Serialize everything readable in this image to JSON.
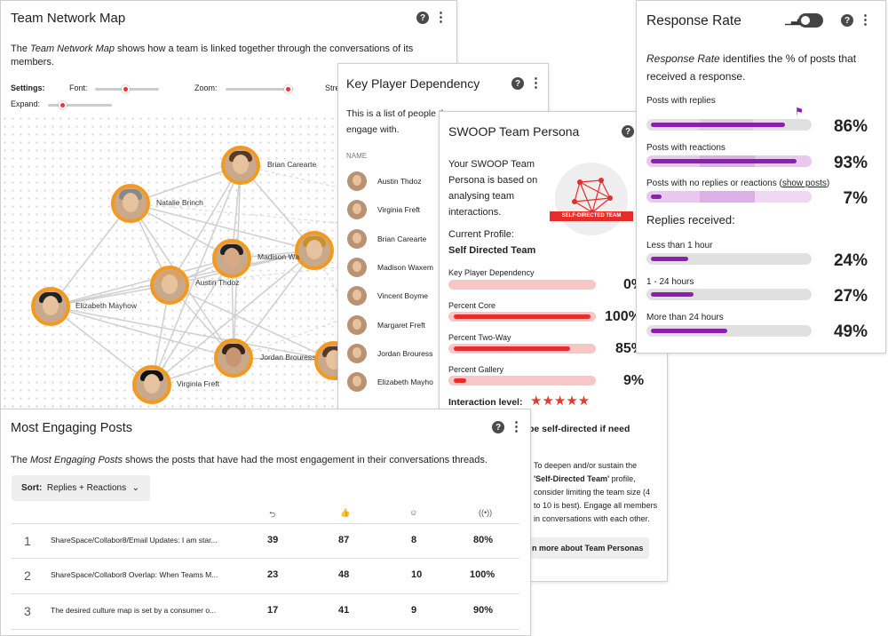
{
  "network": {
    "title": "Team Network Map",
    "desc_pre": "The ",
    "desc_em": "Team Network Map",
    "desc_post": " shows how a team is linked together through the conversations of its members.",
    "settings_label": "Settings:",
    "font_label": "Font:",
    "zoom_label": "Zoom:",
    "strength_label": "Stre",
    "expand_label": "Expand:",
    "nodes": [
      "Brian Carearte",
      "Natalie Brinch",
      "Madison Wa",
      "Austin Thdoz",
      "Elizabeth Mayhow",
      "Jordan Brouress",
      "Virginia Freft"
    ]
  },
  "keyplayer": {
    "title": "Key Player Dependency",
    "desc": "This is a list of people the",
    "desc2": "engage with.",
    "col_name": "NAME",
    "people": [
      "Austin Thdoz",
      "Virginia Freft",
      "Brian Carearte",
      "Madison Waxem",
      "Vincent Boyme",
      "Margaret Freft",
      "Jordan Brouress",
      "Elizabeth Mayho"
    ]
  },
  "persona": {
    "title": "SWOOP Team Persona",
    "desc": "Your SWOOP Team Persona is based on analysing team interactions.",
    "current_label": "Current Profile:",
    "current_value": "Self Directed Team",
    "badge": "SELF-DIRECTED TEAM",
    "metrics": [
      {
        "label": "Key Player Dependency",
        "value": "0%",
        "pct": 0
      },
      {
        "label": "Percent Core",
        "value": "100%",
        "pct": 100
      },
      {
        "label": "Percent Two-Way",
        "value": "85%",
        "pct": 85
      },
      {
        "label": "Percent Gallery",
        "value": "9%",
        "pct": 9
      }
    ],
    "interaction_label": "Interaction level:",
    "stars": "★★★★★",
    "be_text": "be self-directed if need",
    "advice_1": "To deepen and/or sustain the",
    "advice_2": "'Self-Directed Team'",
    "advice_3": " profile, consider limiting the team size (4 to 10 is best). Engage all members in conversations with each other.",
    "learn_more": "n more about Team Personas"
  },
  "response": {
    "title": "Response Rate",
    "desc_em": "Response Rate",
    "desc_post": " identifies the % of posts that received a response.",
    "rows": [
      {
        "label": "Posts with replies",
        "value": "86%",
        "pct": 86
      },
      {
        "label": "Posts with reactions",
        "value": "93%",
        "pct": 93
      },
      {
        "label": "Posts with no replies or reactions (",
        "link": "show posts",
        "label_end": ")",
        "value": "7%",
        "pct": 7
      }
    ],
    "replies_heading": "Replies received:",
    "replies": [
      {
        "label": "Less than 1 hour",
        "value": "24%",
        "pct": 24
      },
      {
        "label": "1 - 24 hours",
        "value": "27%",
        "pct": 27
      },
      {
        "label": "More than 24 hours",
        "value": "49%",
        "pct": 49
      }
    ]
  },
  "posts": {
    "title": "Most Engaging Posts",
    "desc_pre": "The ",
    "desc_em": "Most Engaging Posts",
    "desc_post": " shows the posts that have had the most engagement in their conversations threads.",
    "sort_label": "Sort:",
    "sort_value": "Replies + Reactions",
    "rows": [
      {
        "rank": "1",
        "text": "ShareSpace/Collabor8/Email Updates: I am star...",
        "replies": "39",
        "reactions": "87",
        "people": "8",
        "pct": "80%"
      },
      {
        "rank": "2",
        "text": "ShareSpace/Collabor8 Overlap: When Teams M...",
        "replies": "23",
        "reactions": "48",
        "people": "10",
        "pct": "100%"
      },
      {
        "rank": "3",
        "text": "The desired culture map is set by a consumer o...",
        "replies": "17",
        "reactions": "41",
        "people": "9",
        "pct": "90%"
      }
    ]
  },
  "colors": {
    "orange": "#f39a1e",
    "red": "#e42d2d",
    "purple": "#8c1fb0"
  },
  "icons": [
    "help-icon",
    "kebab-menu-icon",
    "bar-chart-icon",
    "toggle-icon",
    "reply-icon",
    "thumbs-up-icon",
    "person-icon",
    "broadcast-icon",
    "chevron-down-icon",
    "flag-icon"
  ]
}
